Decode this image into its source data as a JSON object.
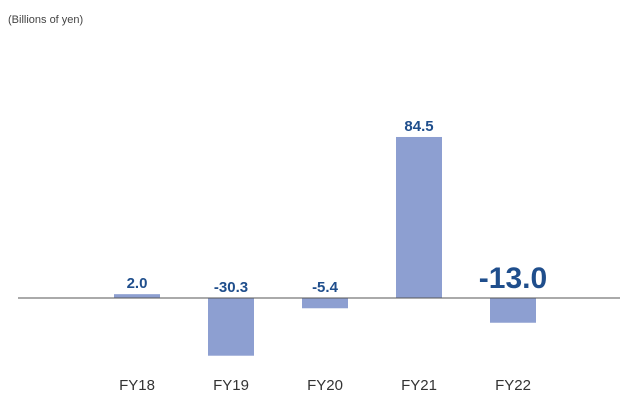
{
  "chart_data": {
    "type": "bar",
    "subtitle": "(Billions of yen)",
    "categories": [
      "FY18",
      "FY19",
      "FY20",
      "FY21",
      "FY22"
    ],
    "values": [
      2.0,
      -30.3,
      -5.4,
      84.5,
      -13.0
    ],
    "value_labels": [
      "2.0",
      "-30.3",
      "-5.4",
      "84.5",
      "-13.0"
    ],
    "color": "#8d9fd1",
    "ylim": [
      -37.8,
      135.4
    ]
  }
}
